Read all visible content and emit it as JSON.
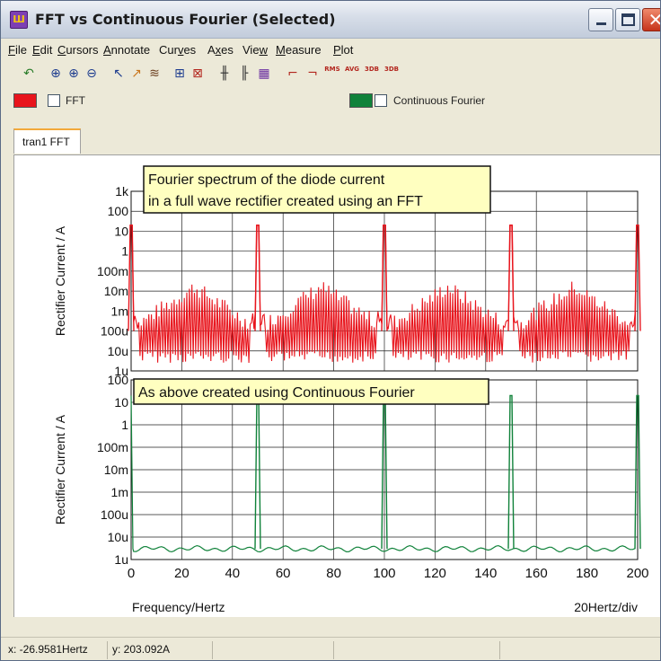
{
  "window": {
    "title": "FFT vs Continuous Fourier (Selected)",
    "app_icon_glyph": "Ш"
  },
  "menu": [
    {
      "label": "File",
      "ul": "F",
      "rest": "ile"
    },
    {
      "label": "Edit",
      "ul": "E",
      "rest": "dit"
    },
    {
      "label": "Cursors",
      "ul": "C",
      "rest": "ursors"
    },
    {
      "label": "Annotate",
      "ul": "A",
      "rest": "nnotate"
    },
    {
      "label": "Curves",
      "pre": "Cur",
      "ul": "v",
      "rest": "es"
    },
    {
      "label": "Axes",
      "pre": "A",
      "ul": "x",
      "rest": "es"
    },
    {
      "label": "View",
      "pre": "Vie",
      "ul": "w",
      "rest": ""
    },
    {
      "label": "Measure",
      "ul": "M",
      "rest": "easure"
    },
    {
      "label": "Plot",
      "ul": "P",
      "rest": "lot"
    }
  ],
  "toolbar_icons": [
    "undo-arrow-icon",
    "zoom-fit-icon",
    "zoom-in-icon",
    "zoom-out-icon",
    "cursor-a-icon",
    "cursor-b-icon",
    "waveform-icon",
    "add-curve-icon",
    "delete-curve-icon",
    "grid-icon",
    "axes-icon",
    "stack-icon",
    "rising-edge-icon",
    "falling-edge-icon",
    "rms-icon",
    "avg-icon",
    "3db-icon",
    "3db-alt-icon"
  ],
  "toolbar_small_labels": {
    "rms": "RMS",
    "avg": "AVG",
    "db1": "3DB",
    "db2": "3DB"
  },
  "legend": [
    {
      "name": "FFT",
      "color": "#e8141c"
    },
    {
      "name": "Continuous Fourier",
      "color": "#10823a"
    }
  ],
  "tab": {
    "label": "tran1 FFT"
  },
  "status": {
    "x": "x: -26.9581Hertz",
    "y": "y: 203.092A"
  },
  "chart_data": [
    {
      "type": "line",
      "series_name": "FFT",
      "annotation": [
        "Fourier spectrum of the diode current",
        "in a full wave rectifier created using an FFT"
      ],
      "ylabel": "Rectifier Current / A",
      "yscale": "log",
      "ylim": [
        1e-06,
        1000
      ],
      "yticks": [
        "1k",
        "100",
        "10",
        "1",
        "100m",
        "10m",
        "1m",
        "100u",
        "10u",
        "1u"
      ],
      "color": "#e8141c",
      "x": [
        0,
        50,
        100,
        150,
        200
      ],
      "y": [
        20,
        20,
        20,
        20,
        20
      ],
      "harmonic_peaks": [
        {
          "x": 10,
          "y": 3e-05
        },
        {
          "x": 20,
          "y": 0.0003
        },
        {
          "x": 30,
          "y": 0.0001
        },
        {
          "x": 40,
          "y": 0.003
        },
        {
          "x": 60,
          "y": 0.003
        },
        {
          "x": 70,
          "y": 0.0001
        },
        {
          "x": 80,
          "y": 0.0003
        },
        {
          "x": 90,
          "y": 0.003
        }
      ]
    },
    {
      "type": "line",
      "series_name": "Continuous Fourier",
      "annotation": [
        "As above created using Continuous Fourier"
      ],
      "ylabel": "Rectifier Current / A",
      "yscale": "log",
      "ylim": [
        1e-06,
        1000
      ],
      "yticks": [
        "100",
        "10",
        "1",
        "100m",
        "10m",
        "1m",
        "100u",
        "10u",
        "1u"
      ],
      "color": "#10823a",
      "x": [
        0,
        50,
        100,
        150,
        200
      ],
      "y": [
        20,
        20,
        20,
        20,
        20
      ],
      "noise_floor": 3e-06
    }
  ],
  "x_axis": {
    "ticks": [
      "0",
      "20",
      "40",
      "60",
      "80",
      "100",
      "120",
      "140",
      "160",
      "180",
      "200"
    ],
    "xlim": [
      0,
      200
    ],
    "label": "Frequency/Hertz",
    "scale_label": "20Hertz/div"
  }
}
